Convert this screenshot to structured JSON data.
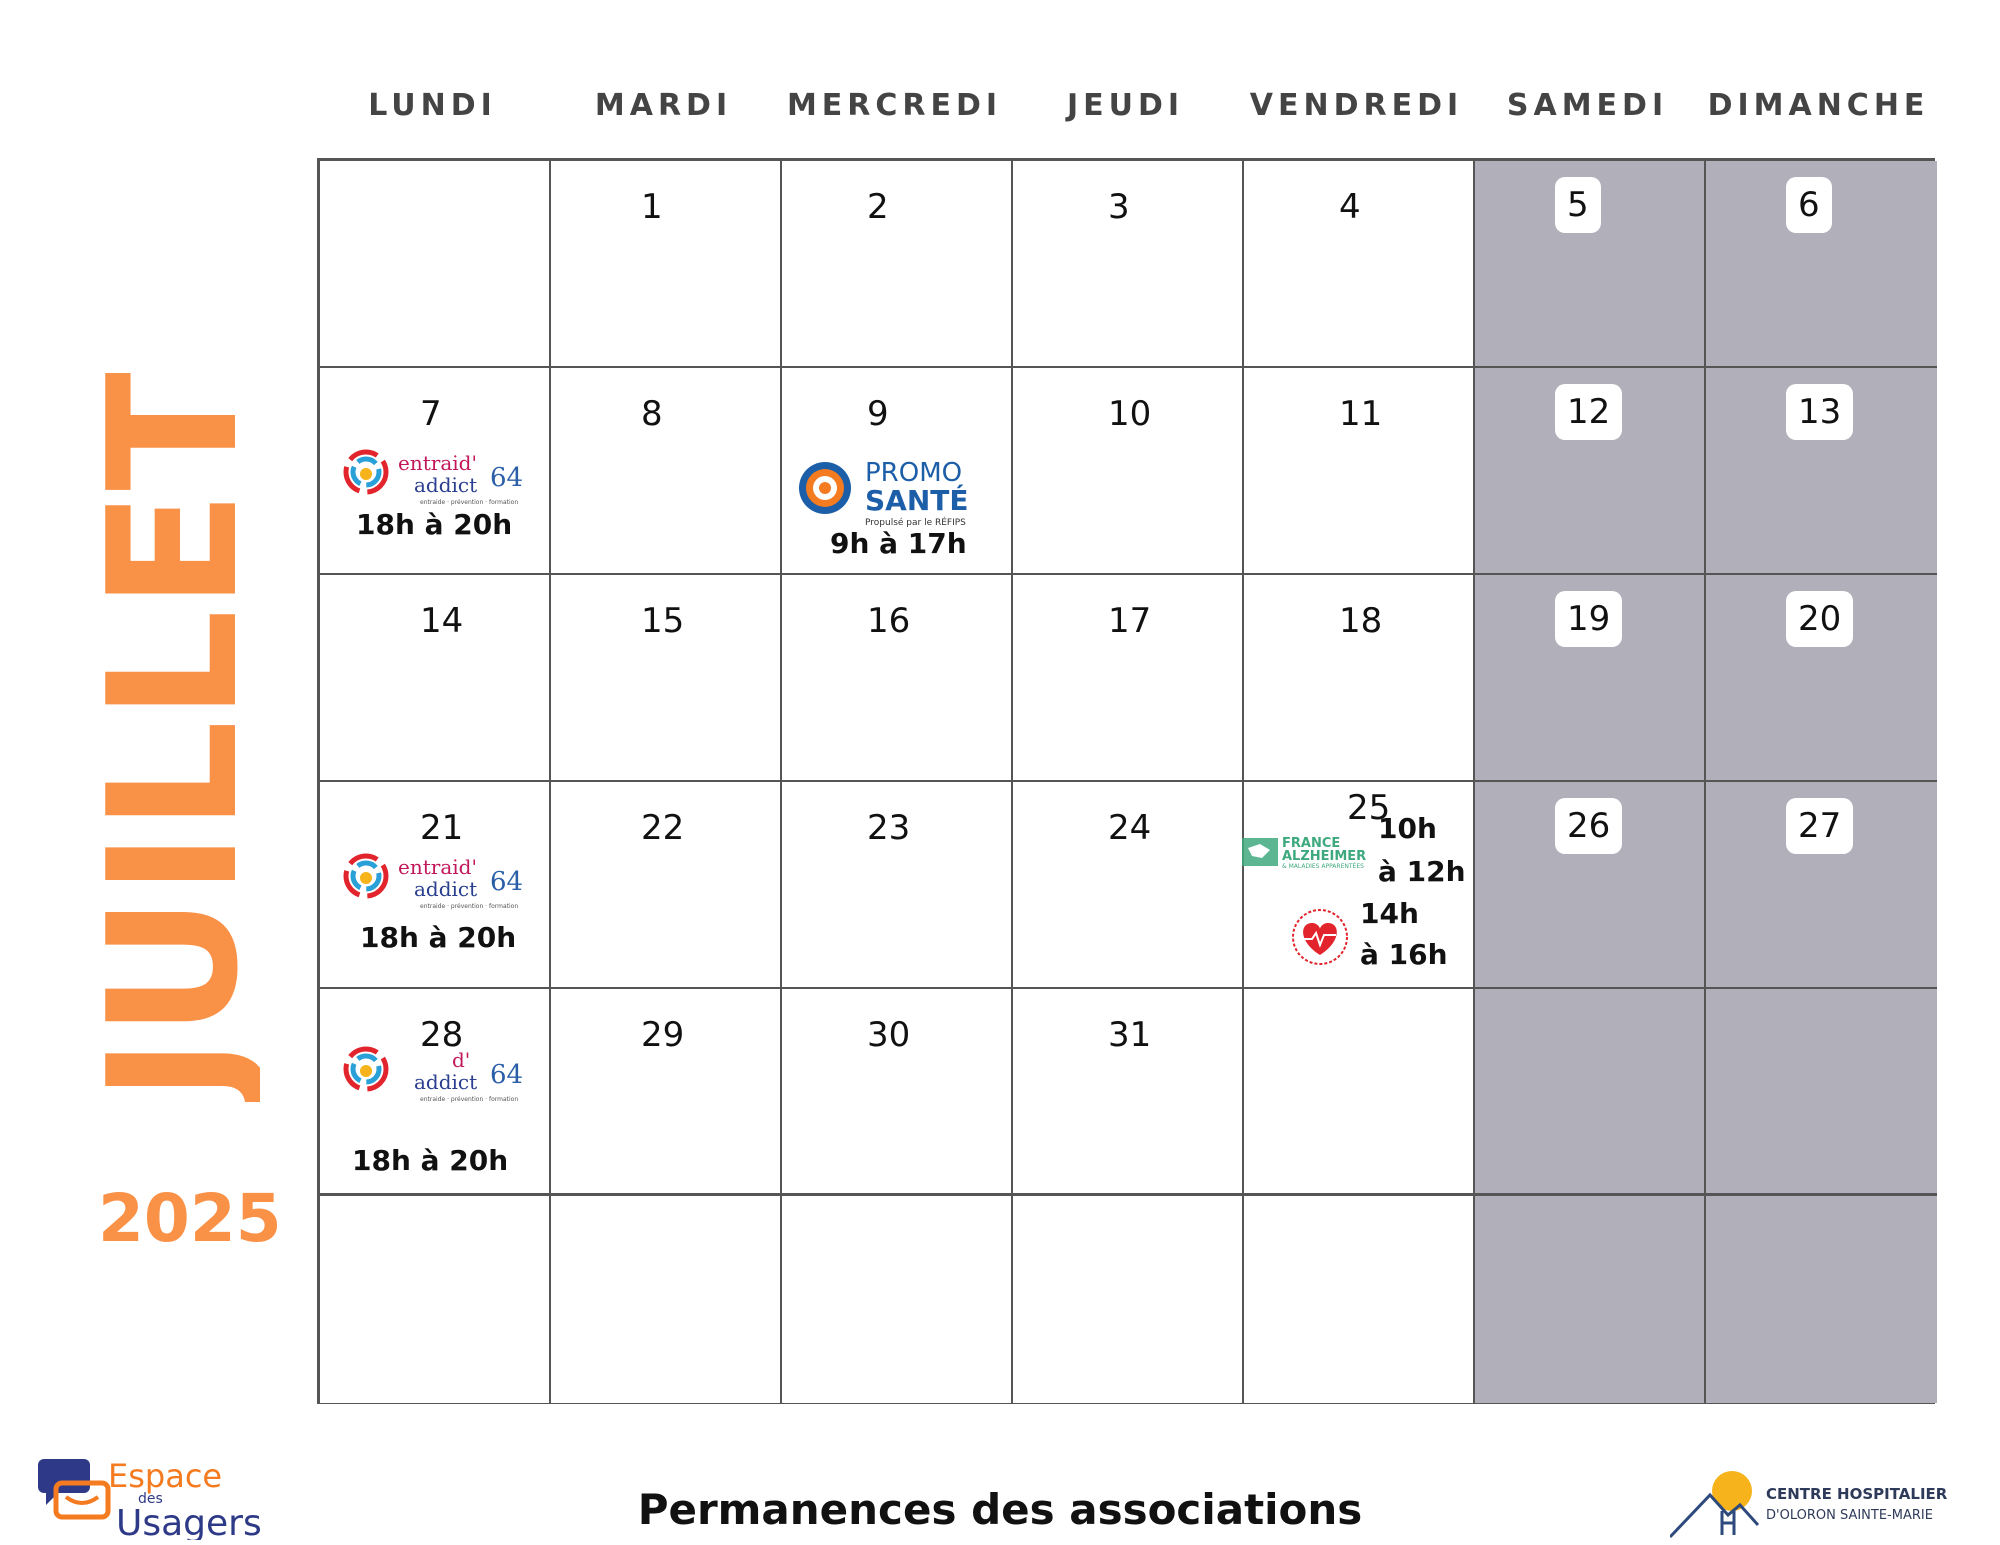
{
  "month": "JUILLET",
  "year": "2025",
  "colors": {
    "accent_orange": "#f99147",
    "weekend_gray": "#b1afba",
    "grid_line": "#555555"
  },
  "day_headers": [
    "LUNDI",
    "MARDI",
    "MERCREDI",
    "JEUDI",
    "VENDREDI",
    "SAMEDI",
    "DIMANCHE"
  ],
  "weeks": [
    [
      "",
      "1",
      "2",
      "3",
      "4",
      "5",
      "6"
    ],
    [
      "7",
      "8",
      "9",
      "10",
      "11",
      "12",
      "13"
    ],
    [
      "14",
      "15",
      "16",
      "17",
      "18",
      "19",
      "20"
    ],
    [
      "21",
      "22",
      "23",
      "24",
      "25",
      "26",
      "27"
    ],
    [
      "28",
      "29",
      "30",
      "31",
      "",
      "",
      ""
    ],
    [
      "",
      "",
      "",
      "",
      "",
      "",
      ""
    ]
  ],
  "events": {
    "d7": {
      "org_logo": "entraid-addict-64-logo",
      "logo_text_1": "entraid'",
      "logo_text_2": "addict",
      "logo_num": "64",
      "logo_tag": "entraide · prévention · formation",
      "time": "18h à 20h"
    },
    "d9": {
      "org_logo": "promo-sante-logo",
      "logo_text_1": "PROMO",
      "logo_text_2": "SANTÉ",
      "logo_tag": "Propulsé par le RÉFIPS",
      "time": "9h à 17h"
    },
    "d21": {
      "org_logo": "entraid-addict-64-logo",
      "logo_text_1": "entraid'",
      "logo_text_2": "addict",
      "logo_num": "64",
      "logo_tag": "entraide · prévention · formation",
      "time": "18h à 20h"
    },
    "d25a": {
      "org_logo": "france-alzheimer-logo",
      "logo_text_1": "FRANCE",
      "logo_text_2": "ALZHEIMER",
      "logo_tag": "& MALADIES APPARENTÉES",
      "time_1": "10h",
      "time_2": "à 12h"
    },
    "d25b": {
      "org_logo": "heart-association-logo",
      "time_1": "14h",
      "time_2": "à 16h"
    },
    "d28": {
      "org_logo": "entraid-addict-64-logo",
      "logo_text_1": "d'",
      "logo_text_2": "addict",
      "logo_num": "64",
      "logo_tag": "entraide · prévention · formation",
      "time": "18h à 20h"
    }
  },
  "footer": {
    "left_logo": {
      "line1": "Espace",
      "line2": "des",
      "line3": "Usagers"
    },
    "title": "Permanences des associations",
    "right_logo": {
      "line1": "CENTRE HOSPITALIER",
      "line2": "D'OLORON SAINTE-MARIE"
    }
  }
}
